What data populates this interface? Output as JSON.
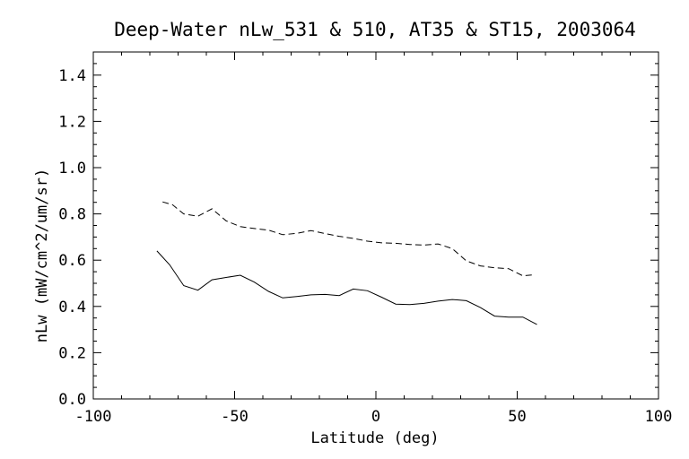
{
  "chart_data": {
    "type": "line",
    "title": "Deep-Water nLw_531 & 510, AT35 & ST15, 2003064",
    "xlabel": "Latitude (deg)",
    "ylabel": "nLw (mW/cm^2/um/sr)",
    "xlim": [
      -100,
      100
    ],
    "ylim": [
      0.0,
      1.5
    ],
    "x_ticks": [
      -100,
      -50,
      0,
      50,
      100
    ],
    "x_tick_labels": [
      "-100",
      "-50",
      "0",
      "50",
      "100"
    ],
    "y_ticks": [
      0.0,
      0.2,
      0.4,
      0.6,
      0.8,
      1.0,
      1.2,
      1.4
    ],
    "y_tick_labels": [
      "0.0",
      "0.2",
      "0.4",
      "0.6",
      "0.8",
      "1.0",
      "1.2",
      "1.4"
    ],
    "grid": false,
    "legend": "none",
    "series": [
      {
        "style": "solid",
        "color": "#000000",
        "points": [
          [
            -77.5,
            0.64
          ],
          [
            -73,
            0.58
          ],
          [
            -68,
            0.49
          ],
          [
            -63,
            0.47
          ],
          [
            -58,
            0.515
          ],
          [
            -53,
            0.525
          ],
          [
            -48,
            0.535
          ],
          [
            -43,
            0.505
          ],
          [
            -38,
            0.465
          ],
          [
            -33,
            0.437
          ],
          [
            -28,
            0.443
          ],
          [
            -23,
            0.45
          ],
          [
            -18,
            0.452
          ],
          [
            -13,
            0.447
          ],
          [
            -8,
            0.475
          ],
          [
            -3,
            0.468
          ],
          [
            2,
            0.44
          ],
          [
            7,
            0.41
          ],
          [
            12,
            0.408
          ],
          [
            17,
            0.413
          ],
          [
            22,
            0.423
          ],
          [
            27,
            0.43
          ],
          [
            32,
            0.425
          ],
          [
            37,
            0.395
          ],
          [
            42,
            0.358
          ],
          [
            47,
            0.354
          ],
          [
            52,
            0.354
          ],
          [
            57,
            0.322
          ]
        ]
      },
      {
        "style": "dashed",
        "color": "#000000",
        "points": [
          [
            -75.5,
            0.852
          ],
          [
            -72,
            0.84
          ],
          [
            -68,
            0.8
          ],
          [
            -63,
            0.79
          ],
          [
            -58,
            0.822
          ],
          [
            -53,
            0.77
          ],
          [
            -48,
            0.745
          ],
          [
            -43,
            0.737
          ],
          [
            -38,
            0.73
          ],
          [
            -33,
            0.71
          ],
          [
            -28,
            0.716
          ],
          [
            -23,
            0.728
          ],
          [
            -18,
            0.715
          ],
          [
            -13,
            0.703
          ],
          [
            -8,
            0.694
          ],
          [
            -3,
            0.682
          ],
          [
            2,
            0.675
          ],
          [
            7,
            0.673
          ],
          [
            12,
            0.668
          ],
          [
            17,
            0.665
          ],
          [
            22,
            0.67
          ],
          [
            27,
            0.65
          ],
          [
            32,
            0.597
          ],
          [
            37,
            0.575
          ],
          [
            42,
            0.567
          ],
          [
            47,
            0.563
          ],
          [
            52,
            0.532
          ],
          [
            56,
            0.537
          ]
        ]
      }
    ]
  }
}
